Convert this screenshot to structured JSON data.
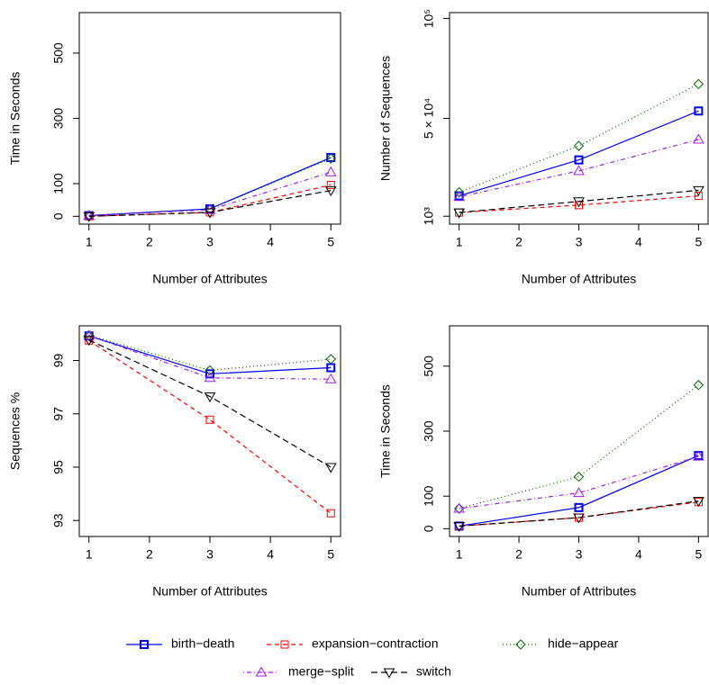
{
  "chart_data": [
    {
      "type": "line",
      "y_label": "Time in Seconds",
      "x_label": "Number of Attributes",
      "x": [
        1,
        3,
        5
      ],
      "xlim": [
        0.84,
        5.16
      ],
      "xticks": [
        1,
        2,
        3,
        4,
        5
      ],
      "ylim": [
        -24,
        624
      ],
      "yticks": [
        0,
        100,
        300,
        500
      ],
      "series": [
        {
          "name": "birth−death",
          "color": "#0000ff",
          "marker": "filled-square",
          "dash": "solid",
          "values": [
            2,
            23,
            180
          ]
        },
        {
          "name": "expansion−contraction",
          "color": "#ff0000",
          "marker": "square",
          "dash": "dashed",
          "values": [
            0,
            12,
            96
          ]
        },
        {
          "name": "hide−appear",
          "color": "#006400",
          "marker": "diamond",
          "dash": "dotted",
          "values": [
            3,
            22,
            177
          ]
        },
        {
          "name": "merge−split",
          "color": "#a020f0",
          "marker": "triangle-up",
          "dash": "dotdash",
          "values": [
            2,
            20,
            135
          ]
        },
        {
          "name": "switch",
          "color": "#000000",
          "marker": "triangle-down",
          "dash": "longdash",
          "values": [
            0,
            12,
            79
          ]
        }
      ]
    },
    {
      "type": "line",
      "y_label": "Number of Sequences",
      "x_label": "Number of Attributes",
      "x": [
        1,
        3,
        5
      ],
      "xlim": [
        0.84,
        5.16
      ],
      "xticks": [
        1,
        2,
        3,
        4,
        5
      ],
      "ylim": [
        -2960,
        102960
      ],
      "yticks": [
        {
          "value": 1000,
          "label": "10³"
        },
        {
          "value": 50000,
          "label": "5 × 10⁴"
        },
        {
          "value": 100000,
          "label": "10⁵"
        }
      ],
      "series": [
        {
          "values": [
            11200,
            29200,
            53700
          ]
        },
        {
          "values": [
            2850,
            6550,
            11200
          ]
        },
        {
          "values": [
            13000,
            36200,
            67200
          ]
        },
        {
          "values": [
            10700,
            23700,
            39400
          ]
        },
        {
          "values": [
            2850,
            8400,
            14000
          ]
        }
      ]
    },
    {
      "type": "line",
      "y_label": "Sequences %",
      "x_label": "Number of Attributes",
      "x": [
        1,
        3,
        5
      ],
      "xlim": [
        0.84,
        5.16
      ],
      "xticks": [
        1,
        2,
        3,
        4,
        5
      ],
      "ylim": [
        92.4,
        100.3
      ],
      "yticks": [
        93,
        95,
        97,
        99
      ],
      "series": [
        {
          "values": [
            99.92,
            98.5,
            98.73
          ]
        },
        {
          "values": [
            99.75,
            96.78,
            93.27
          ]
        },
        {
          "values": [
            99.95,
            98.63,
            99.05
          ]
        },
        {
          "values": [
            99.93,
            98.35,
            98.3
          ]
        },
        {
          "values": [
            99.77,
            97.65,
            95.0
          ]
        }
      ]
    },
    {
      "type": "line",
      "y_label": "Time in Seconds",
      "x_label": "Number of Attributes",
      "x": [
        1,
        3,
        5
      ],
      "xlim": [
        0.84,
        5.16
      ],
      "xticks": [
        1,
        2,
        3,
        4,
        5
      ],
      "ylim": [
        -24,
        624
      ],
      "yticks": [
        0,
        100,
        300,
        500
      ],
      "series": [
        {
          "values": [
            8,
            65,
            225
          ]
        },
        {
          "values": [
            8,
            34,
            82
          ]
        },
        {
          "values": [
            62,
            160,
            442
          ]
        },
        {
          "values": [
            62,
            110,
            222
          ]
        },
        {
          "values": [
            8,
            34,
            85
          ]
        }
      ]
    }
  ]
}
